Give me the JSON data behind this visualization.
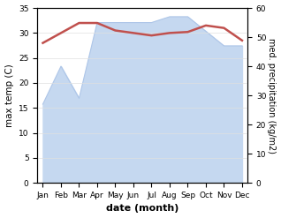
{
  "months": [
    "Jan",
    "Feb",
    "Mar",
    "Apr",
    "May",
    "Jun",
    "Jul",
    "Aug",
    "Sep",
    "Oct",
    "Nov",
    "Dec"
  ],
  "temp": [
    28.0,
    30.0,
    32.0,
    32.0,
    30.5,
    30.0,
    29.5,
    30.0,
    30.2,
    31.5,
    31.0,
    28.5
  ],
  "precip": [
    27,
    40,
    29,
    55,
    55,
    55,
    55,
    57,
    57,
    52,
    47,
    47
  ],
  "temp_color": "#c0504d",
  "precip_fill_color": "#c5d8f0",
  "precip_line_color": "#aec6e8",
  "bg_color": "#ffffff",
  "xlabel": "date (month)",
  "ylabel_left": "max temp (C)",
  "ylabel_right": "med. precipitation (kg/m2)",
  "ylim_left": [
    0,
    35
  ],
  "ylim_right": [
    0,
    60
  ],
  "yticks_left": [
    0,
    5,
    10,
    15,
    20,
    25,
    30,
    35
  ],
  "yticks_right": [
    0,
    10,
    20,
    30,
    40,
    50,
    60
  ],
  "temp_linewidth": 1.8,
  "precip_linewidth": 0.8
}
